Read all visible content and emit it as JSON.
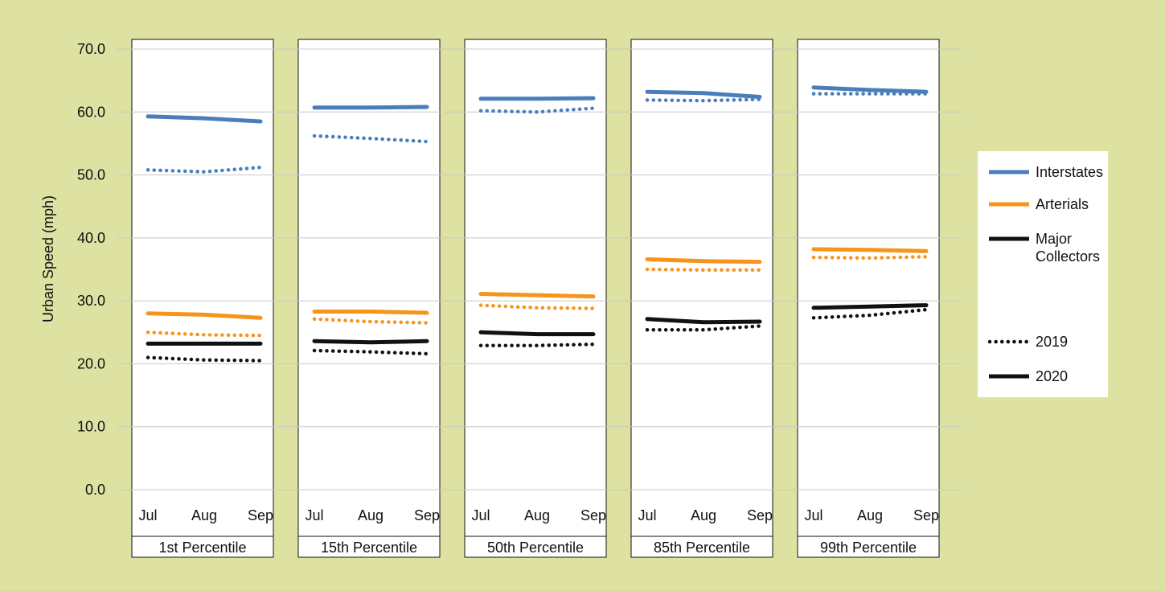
{
  "chart_data": {
    "type": "line",
    "ylabel": "Urban Speed (mph)",
    "ylim": [
      0,
      70
    ],
    "yticks": [
      "0.0",
      "10.0",
      "20.0",
      "30.0",
      "40.0",
      "50.0",
      "60.0",
      "70.0"
    ],
    "categories": [
      "Jul",
      "Aug",
      "Sep"
    ],
    "grid": true,
    "legend_position": "right",
    "panels": [
      {
        "label": "1st Percentile",
        "series": [
          {
            "type_key": "interstates",
            "year_key": "2020",
            "values": [
              59.3,
              59.0,
              58.5
            ]
          },
          {
            "type_key": "interstates",
            "year_key": "2019",
            "values": [
              50.8,
              50.5,
              51.2
            ]
          },
          {
            "type_key": "arterials",
            "year_key": "2020",
            "values": [
              28.0,
              27.8,
              27.3
            ]
          },
          {
            "type_key": "arterials",
            "year_key": "2019",
            "values": [
              25.0,
              24.6,
              24.5
            ]
          },
          {
            "type_key": "collectors",
            "year_key": "2020",
            "values": [
              23.2,
              23.2,
              23.2
            ]
          },
          {
            "type_key": "collectors",
            "year_key": "2019",
            "values": [
              21.0,
              20.6,
              20.5
            ]
          }
        ]
      },
      {
        "label": "15th Percentile",
        "series": [
          {
            "type_key": "interstates",
            "year_key": "2020",
            "values": [
              60.7,
              60.7,
              60.8
            ]
          },
          {
            "type_key": "interstates",
            "year_key": "2019",
            "values": [
              56.2,
              55.8,
              55.3
            ]
          },
          {
            "type_key": "arterials",
            "year_key": "2020",
            "values": [
              28.3,
              28.3,
              28.1
            ]
          },
          {
            "type_key": "arterials",
            "year_key": "2019",
            "values": [
              27.1,
              26.7,
              26.5
            ]
          },
          {
            "type_key": "collectors",
            "year_key": "2020",
            "values": [
              23.6,
              23.4,
              23.6
            ]
          },
          {
            "type_key": "collectors",
            "year_key": "2019",
            "values": [
              22.1,
              21.9,
              21.6
            ]
          }
        ]
      },
      {
        "label": "50th Percentile",
        "series": [
          {
            "type_key": "interstates",
            "year_key": "2020",
            "values": [
              62.1,
              62.1,
              62.2
            ]
          },
          {
            "type_key": "interstates",
            "year_key": "2019",
            "values": [
              60.2,
              60.0,
              60.6
            ]
          },
          {
            "type_key": "arterials",
            "year_key": "2020",
            "values": [
              31.1,
              30.9,
              30.7
            ]
          },
          {
            "type_key": "arterials",
            "year_key": "2019",
            "values": [
              29.3,
              28.9,
              28.8
            ]
          },
          {
            "type_key": "collectors",
            "year_key": "2020",
            "values": [
              25.0,
              24.7,
              24.7
            ]
          },
          {
            "type_key": "collectors",
            "year_key": "2019",
            "values": [
              22.9,
              22.9,
              23.1
            ]
          }
        ]
      },
      {
        "label": "85th Percentile",
        "series": [
          {
            "type_key": "interstates",
            "year_key": "2020",
            "values": [
              63.2,
              63.0,
              62.4
            ]
          },
          {
            "type_key": "interstates",
            "year_key": "2019",
            "values": [
              61.9,
              61.8,
              62.0
            ]
          },
          {
            "type_key": "arterials",
            "year_key": "2020",
            "values": [
              36.6,
              36.3,
              36.2
            ]
          },
          {
            "type_key": "arterials",
            "year_key": "2019",
            "values": [
              35.0,
              34.9,
              34.9
            ]
          },
          {
            "type_key": "collectors",
            "year_key": "2020",
            "values": [
              27.1,
              26.6,
              26.7
            ]
          },
          {
            "type_key": "collectors",
            "year_key": "2019",
            "values": [
              25.4,
              25.4,
              26.0
            ]
          }
        ]
      },
      {
        "label": "99th Percentile",
        "series": [
          {
            "type_key": "interstates",
            "year_key": "2020",
            "values": [
              63.9,
              63.5,
              63.2
            ]
          },
          {
            "type_key": "interstates",
            "year_key": "2019",
            "values": [
              62.9,
              62.9,
              62.9
            ]
          },
          {
            "type_key": "arterials",
            "year_key": "2020",
            "values": [
              38.2,
              38.1,
              37.9
            ]
          },
          {
            "type_key": "arterials",
            "year_key": "2019",
            "values": [
              36.9,
              36.8,
              37.0
            ]
          },
          {
            "type_key": "collectors",
            "year_key": "2020",
            "values": [
              28.9,
              29.1,
              29.3
            ]
          },
          {
            "type_key": "collectors",
            "year_key": "2019",
            "values": [
              27.3,
              27.7,
              28.6
            ]
          }
        ]
      }
    ]
  },
  "legend": {
    "road_types": [
      {
        "key": "interstates",
        "label": "Interstates",
        "color": "#4a7ebb"
      },
      {
        "key": "arterials",
        "label": "Arterials",
        "color": "#f7941d"
      },
      {
        "key": "collectors",
        "label": "Major\nCollectors",
        "color": "#111111"
      }
    ],
    "years": [
      {
        "key": "2019",
        "label": "2019",
        "style": "dotted"
      },
      {
        "key": "2020",
        "label": "2020",
        "style": "solid"
      }
    ]
  },
  "colors": {
    "background": "#dde2a2",
    "panel": "#ffffff",
    "gridline": "#c8c8c8",
    "axis": "#111111"
  }
}
